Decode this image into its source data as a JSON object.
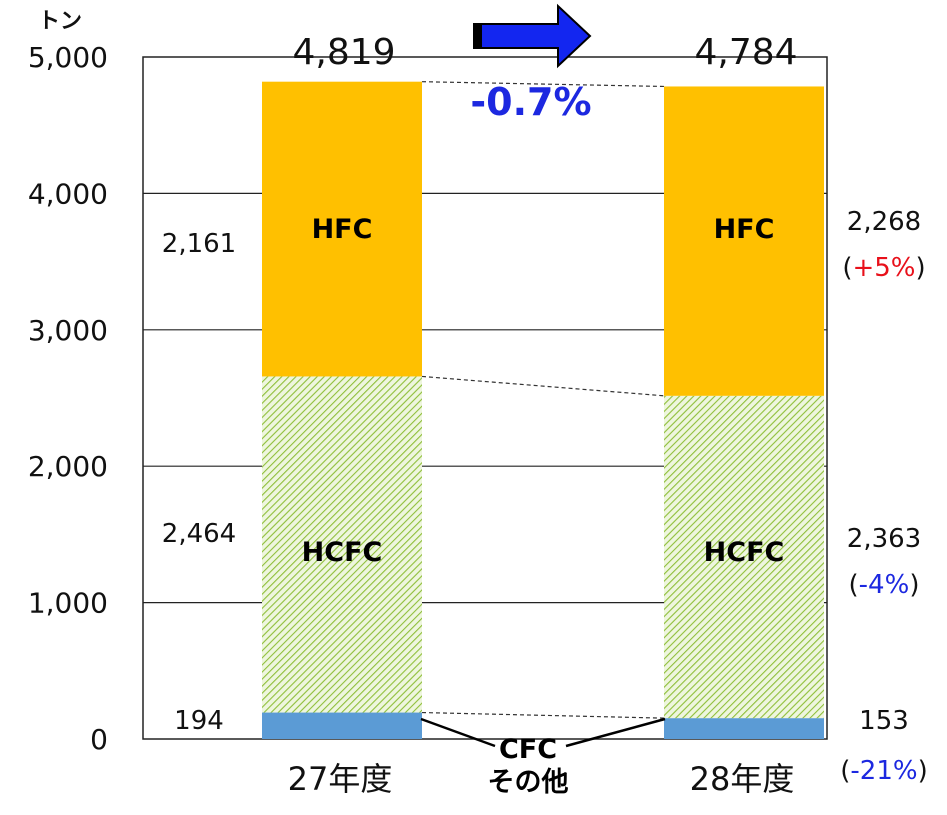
{
  "chart_data": {
    "type": "bar",
    "stacked": true,
    "y_unit": "トン",
    "ylim": [
      0,
      5000
    ],
    "yticks": [
      "0",
      "1,000",
      "2,000",
      "3,000",
      "4,000",
      "5,000"
    ],
    "grid": true,
    "categories": [
      "27年度",
      "28年度"
    ],
    "series": [
      {
        "name": "CFC\nその他",
        "values": [
          194,
          153
        ],
        "color": "#5b9bd5",
        "pattern": "solid"
      },
      {
        "name": "HCFC",
        "values": [
          2464,
          2363
        ],
        "color": "#9bc34a",
        "pattern": "diagonal-hatch"
      },
      {
        "name": "HFC",
        "values": [
          2161,
          2268
        ],
        "color": "#ffc000",
        "pattern": "solid"
      }
    ],
    "segment_labels": [
      "HCFC",
      "HFC"
    ],
    "value_labels": {
      "left": [
        "194",
        "2,464",
        "2,161"
      ],
      "right": [
        "153",
        "2,363",
        "2,268"
      ]
    },
    "change_labels": {
      "CFC": {
        "text": "-21%",
        "color": "#1c28e0"
      },
      "HCFC": {
        "text": "-4%",
        "color": "#1c28e0"
      },
      "HFC": {
        "text": "+5%",
        "color": "#e8101a"
      }
    },
    "totals": [
      "4,819",
      "4,784"
    ],
    "total_change": {
      "text": "-0.7%",
      "color": "#1c28e0"
    },
    "callout_label": [
      "CFC",
      "その他"
    ],
    "arrow_color": "#1326f0"
  }
}
